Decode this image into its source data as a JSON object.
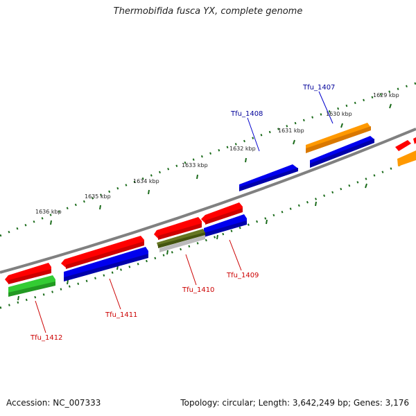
{
  "title": "Thermobifida fusca YX, complete genome",
  "footer": {
    "accession": "Accession: NC_007333",
    "topology": "Topology: circular; Length: 3,642,249 bp; Genes: 3,176"
  },
  "scale_labels": {
    "kbp_1629": "1629 kbp",
    "kbp_1630": "1630 kbp",
    "kbp_1631": "1631 kbp",
    "kbp_1632": "1632 kbp",
    "kbp_1633": "1633 kbp",
    "kbp_1634": "1634 kbp",
    "kbp_1635": "1635 kbp",
    "kbp_1636": "1636 kbp"
  },
  "gene_labels": {
    "tfu_1407": "Tfu_1407",
    "tfu_1408": "Tfu_1408",
    "tfu_1409": "Tfu_1409",
    "tfu_1410": "Tfu_1410",
    "tfu_1411": "Tfu_1411",
    "tfu_1412": "Tfu_1412"
  },
  "colors": {
    "backbone": "#808080",
    "red_feature": "#ff0000",
    "blue_feature": "#0000ee",
    "orange_feature": "#ff9900",
    "green_feature": "#33cc33",
    "olive_feature": "#667722",
    "gray_feature": "#bbbbbb",
    "ticks": "#1a6b1a",
    "label_blue": "#000099",
    "label_red": "#cc0000"
  }
}
